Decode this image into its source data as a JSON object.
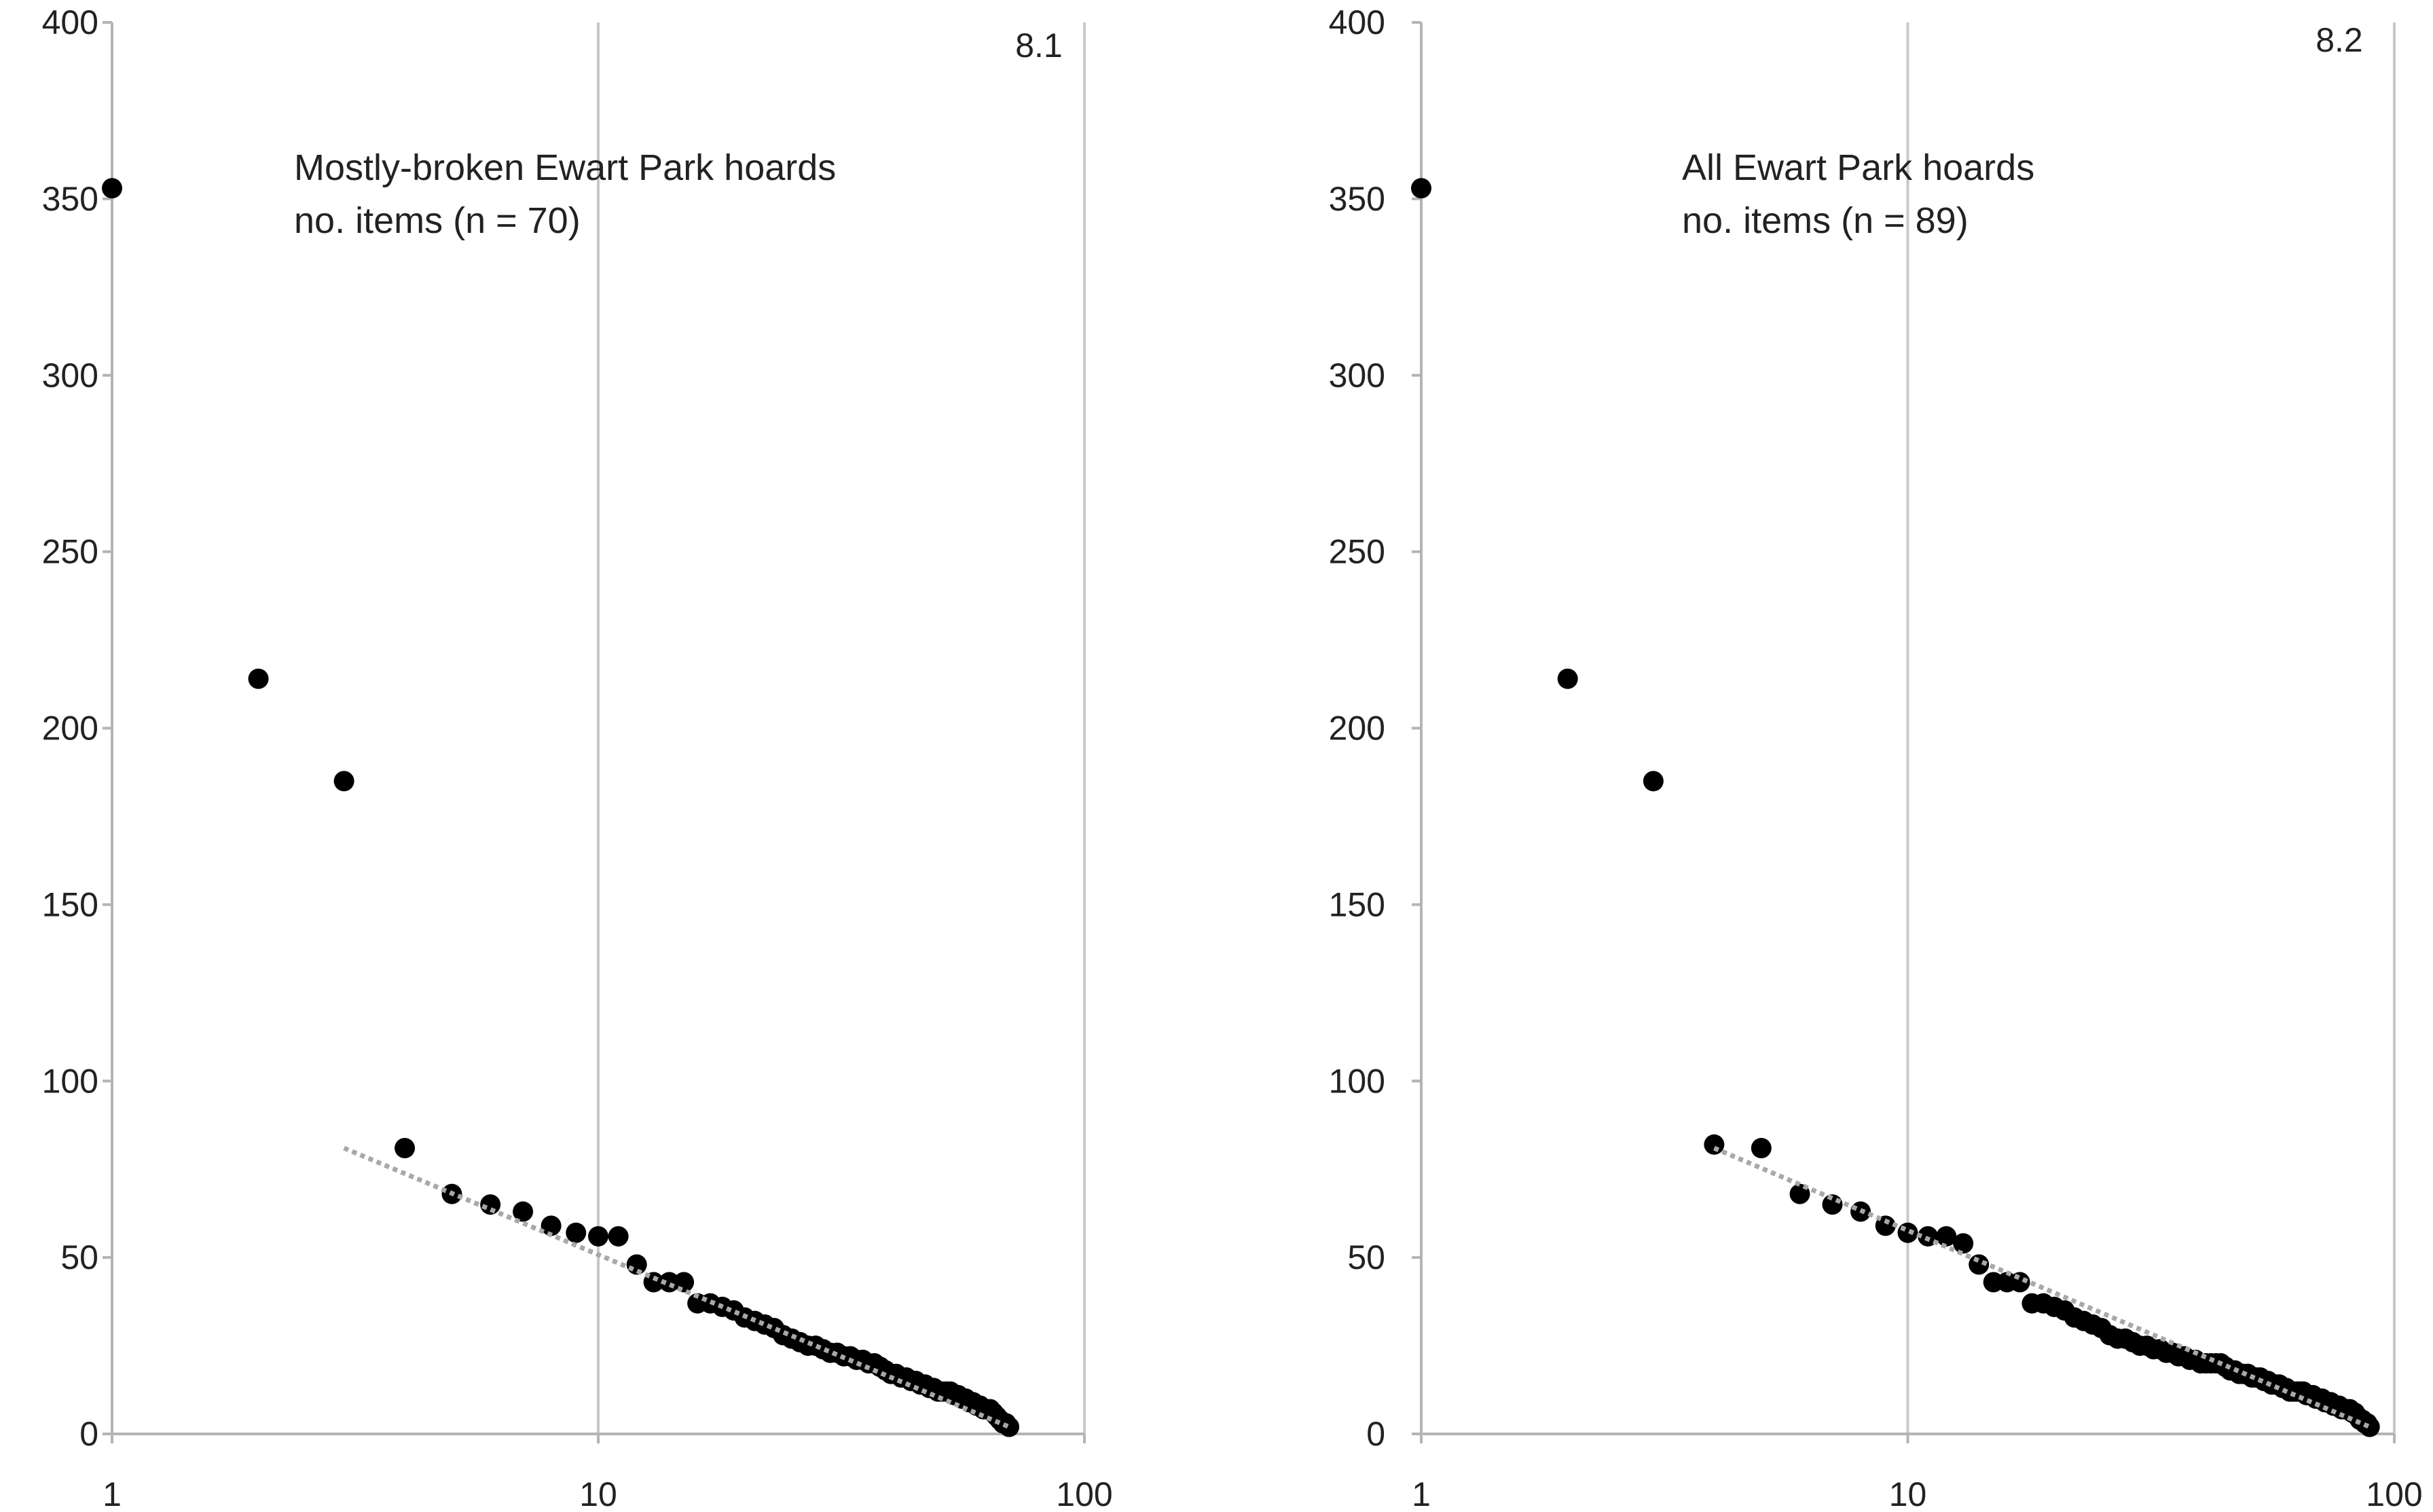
{
  "chart_data": [
    {
      "type": "scatter",
      "panel_label": "8.1",
      "annotation": [
        "Mostly-broken Ewart Park hoards",
        "no. items (n = 70)"
      ],
      "x_scale": "log",
      "xlim": [
        1,
        100
      ],
      "ylim": [
        0,
        400
      ],
      "x_ticks": [
        "1",
        "10",
        "100"
      ],
      "y_ticks": [
        "0",
        "50",
        "100",
        "150",
        "200",
        "250",
        "300",
        "350",
        "400"
      ],
      "grid": "vertical at x = 10 and x = 100",
      "points": [
        [
          1,
          353
        ],
        [
          2,
          214
        ],
        [
          3,
          185
        ],
        [
          4,
          81
        ],
        [
          5,
          68
        ],
        [
          6,
          65
        ],
        [
          7,
          63
        ],
        [
          8,
          59
        ],
        [
          9,
          57
        ],
        [
          10,
          56
        ],
        [
          11,
          56
        ],
        [
          12,
          48
        ],
        [
          13,
          43
        ],
        [
          14,
          43
        ],
        [
          15,
          43
        ],
        [
          16,
          37
        ],
        [
          17,
          37
        ],
        [
          18,
          36
        ],
        [
          19,
          35
        ],
        [
          20,
          33
        ],
        [
          21,
          32
        ],
        [
          22,
          31
        ],
        [
          23,
          30
        ],
        [
          24,
          28
        ],
        [
          25,
          27
        ],
        [
          26,
          26
        ],
        [
          27,
          25
        ],
        [
          28,
          25
        ],
        [
          29,
          24
        ],
        [
          30,
          23
        ],
        [
          31,
          23
        ],
        [
          32,
          22
        ],
        [
          33,
          22
        ],
        [
          34,
          21
        ],
        [
          35,
          21
        ],
        [
          36,
          20
        ],
        [
          37,
          20
        ],
        [
          38,
          19
        ],
        [
          39,
          18
        ],
        [
          40,
          17
        ],
        [
          41,
          17
        ],
        [
          42,
          16
        ],
        [
          43,
          16
        ],
        [
          44,
          15
        ],
        [
          45,
          15
        ],
        [
          46,
          14
        ],
        [
          47,
          14
        ],
        [
          48,
          13
        ],
        [
          49,
          13
        ],
        [
          50,
          12
        ],
        [
          51,
          12
        ],
        [
          52,
          12
        ],
        [
          53,
          12
        ],
        [
          54,
          11
        ],
        [
          55,
          11
        ],
        [
          56,
          10
        ],
        [
          57,
          10
        ],
        [
          58,
          9
        ],
        [
          59,
          9
        ],
        [
          60,
          8
        ],
        [
          61,
          8
        ],
        [
          62,
          7
        ],
        [
          63,
          7
        ],
        [
          64,
          7
        ],
        [
          65,
          6
        ],
        [
          66,
          5
        ],
        [
          67,
          4
        ],
        [
          68,
          3
        ],
        [
          69,
          3
        ],
        [
          70,
          2
        ]
      ],
      "trendline": {
        "style": "dotted grey",
        "from": [
          3,
          81
        ],
        "to": [
          70,
          2
        ]
      }
    },
    {
      "type": "scatter",
      "panel_label": "8.2",
      "annotation": [
        "All Ewart Park hoards",
        "no. items (n = 89)"
      ],
      "x_scale": "log",
      "xlim": [
        1,
        100
      ],
      "ylim": [
        0,
        400
      ],
      "x_ticks": [
        "1",
        "10",
        "100"
      ],
      "y_ticks": [
        "0",
        "50",
        "100",
        "150",
        "200",
        "250",
        "300",
        "350",
        "400"
      ],
      "grid": "vertical at x = 10 and x = 100",
      "points": [
        [
          1,
          353
        ],
        [
          2,
          214
        ],
        [
          3,
          185
        ],
        [
          4,
          82
        ],
        [
          5,
          81
        ],
        [
          6,
          68
        ],
        [
          7,
          65
        ],
        [
          8,
          63
        ],
        [
          9,
          59
        ],
        [
          10,
          57
        ],
        [
          11,
          56
        ],
        [
          12,
          56
        ],
        [
          13,
          54
        ],
        [
          14,
          48
        ],
        [
          15,
          43
        ],
        [
          16,
          43
        ],
        [
          17,
          43
        ],
        [
          18,
          37
        ],
        [
          19,
          37
        ],
        [
          20,
          36
        ],
        [
          21,
          35
        ],
        [
          22,
          33
        ],
        [
          23,
          32
        ],
        [
          24,
          31
        ],
        [
          25,
          30
        ],
        [
          26,
          28
        ],
        [
          27,
          27
        ],
        [
          28,
          27
        ],
        [
          29,
          26
        ],
        [
          30,
          25
        ],
        [
          31,
          25
        ],
        [
          32,
          24
        ],
        [
          33,
          24
        ],
        [
          34,
          23
        ],
        [
          35,
          23
        ],
        [
          36,
          22
        ],
        [
          37,
          22
        ],
        [
          38,
          21
        ],
        [
          39,
          21
        ],
        [
          40,
          20
        ],
        [
          41,
          20
        ],
        [
          42,
          20
        ],
        [
          43,
          20
        ],
        [
          44,
          20
        ],
        [
          45,
          19
        ],
        [
          46,
          18
        ],
        [
          47,
          18
        ],
        [
          48,
          17
        ],
        [
          49,
          17
        ],
        [
          50,
          17
        ],
        [
          51,
          16
        ],
        [
          52,
          16
        ],
        [
          53,
          16
        ],
        [
          54,
          15
        ],
        [
          55,
          15
        ],
        [
          56,
          14
        ],
        [
          57,
          14
        ],
        [
          58,
          14
        ],
        [
          59,
          13
        ],
        [
          60,
          13
        ],
        [
          61,
          12
        ],
        [
          62,
          12
        ],
        [
          63,
          12
        ],
        [
          64,
          12
        ],
        [
          65,
          12
        ],
        [
          66,
          11
        ],
        [
          67,
          11
        ],
        [
          68,
          11
        ],
        [
          69,
          10
        ],
        [
          70,
          10
        ],
        [
          71,
          10
        ],
        [
          72,
          9
        ],
        [
          73,
          9
        ],
        [
          74,
          9
        ],
        [
          75,
          8
        ],
        [
          76,
          8
        ],
        [
          77,
          8
        ],
        [
          78,
          7
        ],
        [
          79,
          7
        ],
        [
          80,
          7
        ],
        [
          81,
          7
        ],
        [
          82,
          6
        ],
        [
          83,
          6
        ],
        [
          84,
          5
        ],
        [
          85,
          4
        ],
        [
          86,
          4
        ],
        [
          87,
          3
        ],
        [
          88,
          3
        ],
        [
          89,
          2
        ]
      ],
      "trendline": {
        "style": "dotted grey",
        "from": [
          4,
          81
        ],
        "to": [
          89,
          2
        ]
      }
    }
  ]
}
